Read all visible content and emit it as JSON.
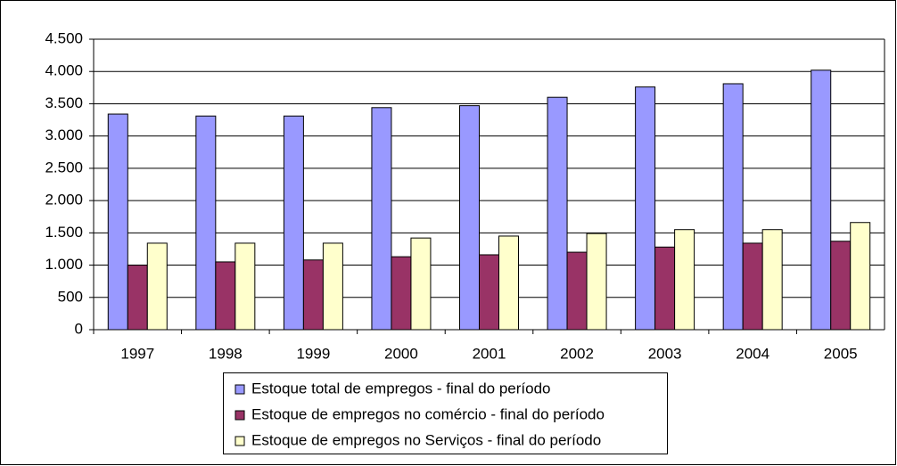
{
  "chart_data": {
    "type": "bar",
    "categories": [
      "1997",
      "1998",
      "1999",
      "2000",
      "2001",
      "2002",
      "2003",
      "2004",
      "2005"
    ],
    "series": [
      {
        "name": "Estoque total de empregos - final do período",
        "color": "#9999ff",
        "values": [
          3340,
          3310,
          3310,
          3440,
          3470,
          3600,
          3760,
          3810,
          4020
        ]
      },
      {
        "name": "Estoque de empregos no comércio - final do período",
        "color": "#993366",
        "values": [
          1000,
          1050,
          1080,
          1130,
          1160,
          1200,
          1280,
          1340,
          1370
        ]
      },
      {
        "name": "Estoque de empregos no Serviços - final do período",
        "color": "#ffffcc",
        "values": [
          1340,
          1340,
          1340,
          1420,
          1450,
          1490,
          1550,
          1550,
          1660
        ]
      }
    ],
    "ylim": [
      0,
      4500
    ],
    "yticks": [
      0,
      500,
      {
        "value": 1000,
        "label": "1.000"
      },
      {
        "value": 1500,
        "label": "1.500"
      },
      {
        "value": 2000,
        "label": "2.000"
      },
      {
        "value": 2500,
        "label": "2.500"
      },
      {
        "value": 3000,
        "label": "3.000"
      },
      {
        "value": 3500,
        "label": "3.500"
      },
      {
        "value": 4000,
        "label": "4.000"
      },
      {
        "value": 4500,
        "label": "4.500"
      }
    ],
    "grid": true,
    "legend": "bottom"
  }
}
